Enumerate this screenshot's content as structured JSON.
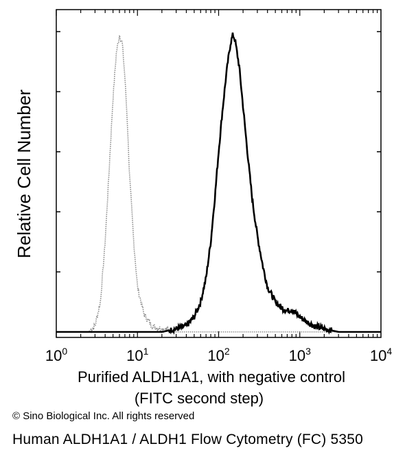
{
  "chart_data": {
    "type": "line",
    "xscale": "log",
    "xlim": [
      1,
      10000
    ],
    "ylim": [
      0,
      1
    ],
    "xlabel_line1": "Purified ALDH1A1, with negative control",
    "xlabel_line2": "(FITC second step)",
    "ylabel": "Relative Cell Number",
    "x_ticks": [
      {
        "value": 1,
        "base": "10",
        "exp": "0"
      },
      {
        "value": 10,
        "base": "10",
        "exp": "1"
      },
      {
        "value": 100,
        "base": "10",
        "exp": "2"
      },
      {
        "value": 1000,
        "base": "10",
        "exp": "3"
      },
      {
        "value": 10000,
        "base": "10",
        "exp": "4"
      }
    ],
    "y_ticks": [
      0,
      0.2,
      0.4,
      0.6,
      0.8,
      1.0
    ],
    "grid": false,
    "legend": "none",
    "series": [
      {
        "style": "dotted",
        "color": "#888888",
        "x": [
          1,
          2.5,
          3.0,
          3.5,
          4.0,
          4.5,
          5.0,
          5.5,
          6.0,
          6.5,
          7.0,
          7.5,
          8.0,
          9.0,
          10.0,
          12.0,
          15.0,
          20.0,
          30.0,
          10000
        ],
        "y": [
          0,
          0,
          0.02,
          0.1,
          0.3,
          0.55,
          0.78,
          0.93,
          0.99,
          0.96,
          0.85,
          0.7,
          0.52,
          0.3,
          0.15,
          0.06,
          0.02,
          0.01,
          0,
          0
        ]
      },
      {
        "style": "solid",
        "color": "#000000",
        "x": [
          1,
          20,
          30,
          40,
          50,
          60,
          70,
          80,
          90,
          100,
          110,
          120,
          130,
          140,
          150,
          160,
          180,
          200,
          230,
          260,
          300,
          350,
          400,
          500,
          600,
          700,
          800,
          900,
          1000,
          1200,
          1500,
          2000,
          3000,
          10000
        ],
        "y": [
          0,
          0,
          0.01,
          0.02,
          0.05,
          0.1,
          0.18,
          0.3,
          0.45,
          0.6,
          0.72,
          0.82,
          0.9,
          0.96,
          0.99,
          0.97,
          0.88,
          0.75,
          0.58,
          0.44,
          0.32,
          0.22,
          0.15,
          0.1,
          0.08,
          0.07,
          0.075,
          0.06,
          0.05,
          0.035,
          0.02,
          0.01,
          0,
          0
        ]
      }
    ]
  },
  "copyright": "© Sino Biological Inc. All rights reserved",
  "caption": "Human ALDH1A1 / ALDH1 Flow Cytometry (FC) 5350"
}
